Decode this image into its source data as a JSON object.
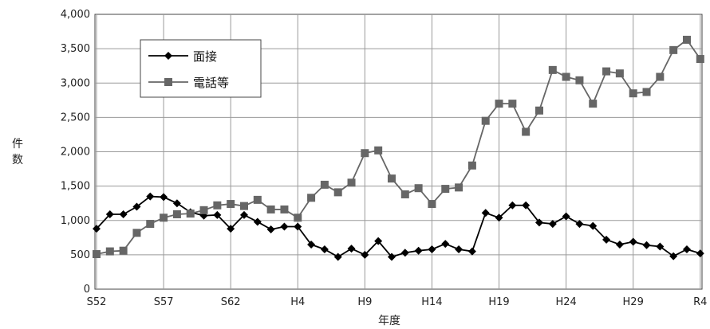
{
  "chart_data": {
    "type": "line",
    "xlabel": "年度",
    "ylabel": "件数",
    "ylim": [
      0,
      4000
    ],
    "yticks": [
      "0",
      "500",
      "1,000",
      "1,500",
      "2,000",
      "2,500",
      "3,000",
      "3,500",
      "4,000"
    ],
    "ytick_values": [
      0,
      500,
      1000,
      1500,
      2000,
      2500,
      3000,
      3500,
      4000
    ],
    "xtick_labels": [
      "S52",
      "S57",
      "S62",
      "H4",
      "H9",
      "H14",
      "H19",
      "H24",
      "H29",
      "R4"
    ],
    "xtick_index": [
      0,
      5,
      10,
      15,
      20,
      25,
      30,
      35,
      40,
      45
    ],
    "grid": "vertical and horizontal",
    "legend_position": "top-left",
    "x": [
      "S52",
      "S53",
      "S54",
      "S55",
      "S56",
      "S57",
      "S58",
      "S59",
      "S60",
      "S61",
      "S62",
      "S63",
      "H1",
      "H2",
      "H3",
      "H4",
      "H5",
      "H6",
      "H7",
      "H8",
      "H9",
      "H10",
      "H11",
      "H12",
      "H13",
      "H14",
      "H15",
      "H16",
      "H17",
      "H18",
      "H19",
      "H20",
      "H21",
      "H22",
      "H23",
      "H24",
      "H25",
      "H26",
      "H27",
      "H28",
      "H29",
      "H30",
      "R1",
      "R2",
      "R3",
      "R4"
    ],
    "series": [
      {
        "name": "面接",
        "marker": "diamond",
        "color": "#000000",
        "values": [
          880,
          1090,
          1090,
          1200,
          1350,
          1340,
          1250,
          1120,
          1070,
          1080,
          880,
          1080,
          980,
          870,
          910,
          910,
          650,
          580,
          470,
          590,
          500,
          700,
          470,
          530,
          560,
          580,
          660,
          580,
          550,
          1110,
          1040,
          1220,
          1220,
          970,
          950,
          1060,
          950,
          920,
          720,
          650,
          690,
          640,
          620,
          480,
          580,
          520
        ]
      },
      {
        "name": "電話等",
        "marker": "square",
        "color": "#666666",
        "values": [
          510,
          550,
          560,
          820,
          950,
          1040,
          1090,
          1100,
          1150,
          1220,
          1240,
          1210,
          1300,
          1160,
          1160,
          1040,
          1330,
          1520,
          1410,
          1550,
          1980,
          2020,
          1610,
          1380,
          1470,
          1240,
          1460,
          1480,
          1800,
          2450,
          2700,
          2700,
          2290,
          2600,
          3190,
          3090,
          3040,
          2700,
          3170,
          3140,
          2850,
          2870,
          3090,
          3480,
          3630,
          3350
        ]
      }
    ]
  }
}
